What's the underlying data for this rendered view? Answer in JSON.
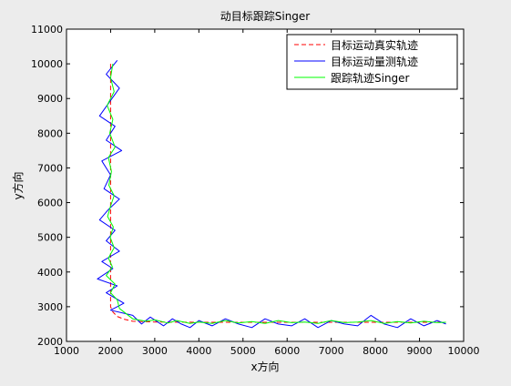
{
  "chart_data": {
    "type": "line",
    "title": "动目标跟踪Singer",
    "xlabel": "x方向",
    "ylabel": "y方向",
    "xlim": [
      1000,
      10000
    ],
    "ylim": [
      2000,
      11000
    ],
    "xticks": [
      1000,
      2000,
      3000,
      4000,
      5000,
      6000,
      7000,
      8000,
      9000,
      10000
    ],
    "yticks": [
      2000,
      3000,
      4000,
      5000,
      6000,
      7000,
      8000,
      9000,
      10000,
      11000
    ],
    "grid": false,
    "legend_position": "top-right",
    "series": [
      {
        "name": "目标运动真实轨迹",
        "color": "#ff0000",
        "style": "dashed",
        "x": [
          2000,
          2000,
          2000,
          2000,
          2000,
          2000,
          2000,
          2000,
          2000,
          2050,
          2150,
          2300,
          2500,
          3000,
          4000,
          5000,
          6000,
          7000,
          8000,
          9000,
          9600
        ],
        "y": [
          10000,
          9000,
          8000,
          7000,
          6000,
          5000,
          4000,
          3400,
          3000,
          2850,
          2720,
          2640,
          2580,
          2560,
          2550,
          2550,
          2550,
          2550,
          2550,
          2550,
          2550
        ]
      },
      {
        "name": "目标运动量测轨迹",
        "color": "#0000ff",
        "style": "solid",
        "x": [
          2150,
          1900,
          2200,
          1750,
          2100,
          1900,
          2250,
          1800,
          2000,
          1850,
          2200,
          1950,
          1750,
          2100,
          1900,
          2200,
          1800,
          2050,
          1700,
          2150,
          1900,
          2300,
          2000,
          2500,
          2700,
          2900,
          3200,
          3400,
          3600,
          3800,
          4000,
          4300,
          4600,
          4900,
          5200,
          5500,
          5800,
          6100,
          6400,
          6700,
          7000,
          7300,
          7600,
          7900,
          8200,
          8500,
          8800,
          9100,
          9400,
          9600
        ],
        "y": [
          10100,
          9700,
          9300,
          8500,
          8200,
          7800,
          7500,
          7200,
          6800,
          6400,
          6100,
          5800,
          5500,
          5200,
          4900,
          4600,
          4300,
          4100,
          3800,
          3600,
          3400,
          3100,
          2900,
          2750,
          2500,
          2700,
          2450,
          2650,
          2500,
          2400,
          2600,
          2450,
          2650,
          2500,
          2400,
          2650,
          2500,
          2450,
          2650,
          2400,
          2600,
          2500,
          2450,
          2750,
          2500,
          2400,
          2650,
          2450,
          2600,
          2500
        ]
      },
      {
        "name": "跟踪轨迹Singer",
        "color": "#00ff00",
        "style": "solid",
        "x": [
          2050,
          2000,
          2080,
          1920,
          2050,
          1980,
          2100,
          1950,
          2020,
          1960,
          2080,
          2000,
          1930,
          2060,
          1990,
          2080,
          1950,
          2040,
          1900,
          2100,
          2000,
          2150,
          2200,
          2500,
          2800,
          3000,
          3300,
          3500,
          3800,
          4000,
          4300,
          4600,
          4900,
          5200,
          5500,
          5800,
          6100,
          6400,
          6700,
          7000,
          7300,
          7600,
          7900,
          8200,
          8500,
          8800,
          9100,
          9400,
          9600
        ],
        "y": [
          10000,
          9600,
          9200,
          8800,
          8400,
          8000,
          7600,
          7300,
          6900,
          6500,
          6200,
          5900,
          5600,
          5300,
          5000,
          4700,
          4400,
          4150,
          3900,
          3650,
          3400,
          3200,
          2950,
          2650,
          2580,
          2620,
          2530,
          2600,
          2520,
          2560,
          2520,
          2600,
          2530,
          2570,
          2520,
          2600,
          2540,
          2560,
          2520,
          2600,
          2540,
          2560,
          2600,
          2520,
          2570,
          2530,
          2580,
          2540,
          2550
        ]
      }
    ]
  }
}
